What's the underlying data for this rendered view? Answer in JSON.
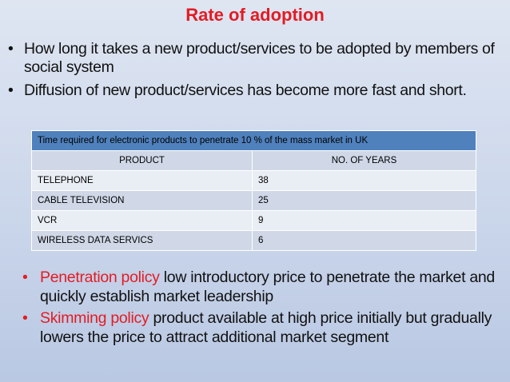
{
  "title": "Rate of adoption",
  "top_bullets": [
    "How long it takes a new product/services to be adopted by members of social system",
    "Diffusion of new product/services has become more fast and short."
  ],
  "table": {
    "caption": "Time required for electronic products to penetrate 10 %  of the mass market in UK",
    "headers": [
      "PRODUCT",
      "NO. OF YEARS"
    ],
    "rows": [
      [
        "TELEPHONE",
        "38"
      ],
      [
        "CABLE TELEVISION",
        "25"
      ],
      [
        "VCR",
        "9"
      ],
      [
        "WIRELESS DATA SERVICS",
        "6"
      ]
    ]
  },
  "bottom_bullets": [
    {
      "term": "Penetration policy",
      "text": " low introductory price to penetrate the market and quickly establish market leadership"
    },
    {
      "term": "Skimming policy",
      "text": " product available at high price initially but gradually lowers the price to attract additional market segment"
    }
  ],
  "colors": {
    "accent_red": "#e31c23",
    "table_header_blue": "#4f81bd",
    "row_dark": "#d0d8e8",
    "row_light": "#e9edf4"
  }
}
